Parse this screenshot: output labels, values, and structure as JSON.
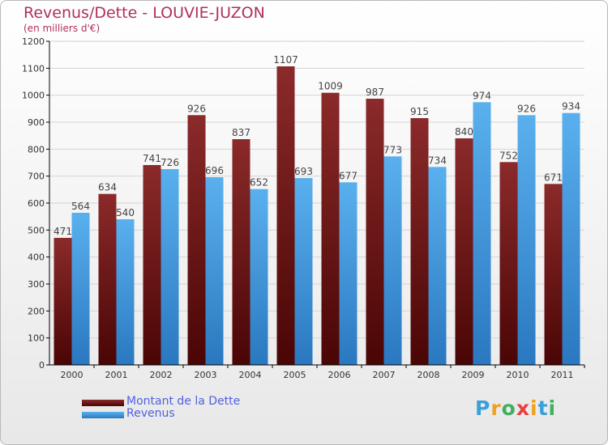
{
  "title": "Revenus/Dette - LOUVIE-JUZON",
  "subtitle": "(en milliers d'€)",
  "logo": {
    "letters": [
      "P",
      "r",
      "o",
      "x",
      "i",
      "t",
      "i"
    ],
    "colors": [
      "#3aa0d8",
      "#f0a020",
      "#40b060",
      "#e84040",
      "#f0a020",
      "#3aa0d8",
      "#40b060"
    ]
  },
  "colors": {
    "dette": "#8b1a1a",
    "revenus": "#3a9ae0",
    "axis": "#000000",
    "grid": "#d4d4d4"
  },
  "chart_data": {
    "type": "bar",
    "categories": [
      "2000",
      "2001",
      "2002",
      "2003",
      "2004",
      "2005",
      "2006",
      "2007",
      "2008",
      "2009",
      "2010",
      "2011"
    ],
    "series": [
      {
        "name": "Montant de la Dette",
        "values": [
          471,
          634,
          741,
          926,
          837,
          1107,
          1009,
          987,
          915,
          840,
          752,
          671
        ]
      },
      {
        "name": "Revenus",
        "values": [
          564,
          540,
          726,
          696,
          652,
          693,
          677,
          773,
          734,
          974,
          926,
          934
        ]
      }
    ],
    "ylim": [
      0,
      1200
    ],
    "yticks": [
      "0",
      "100",
      "200",
      "300",
      "400",
      "500",
      "600",
      "700",
      "800",
      "900",
      "1000",
      "1100",
      "1200"
    ],
    "grid": true,
    "legend": "bottom-left"
  }
}
